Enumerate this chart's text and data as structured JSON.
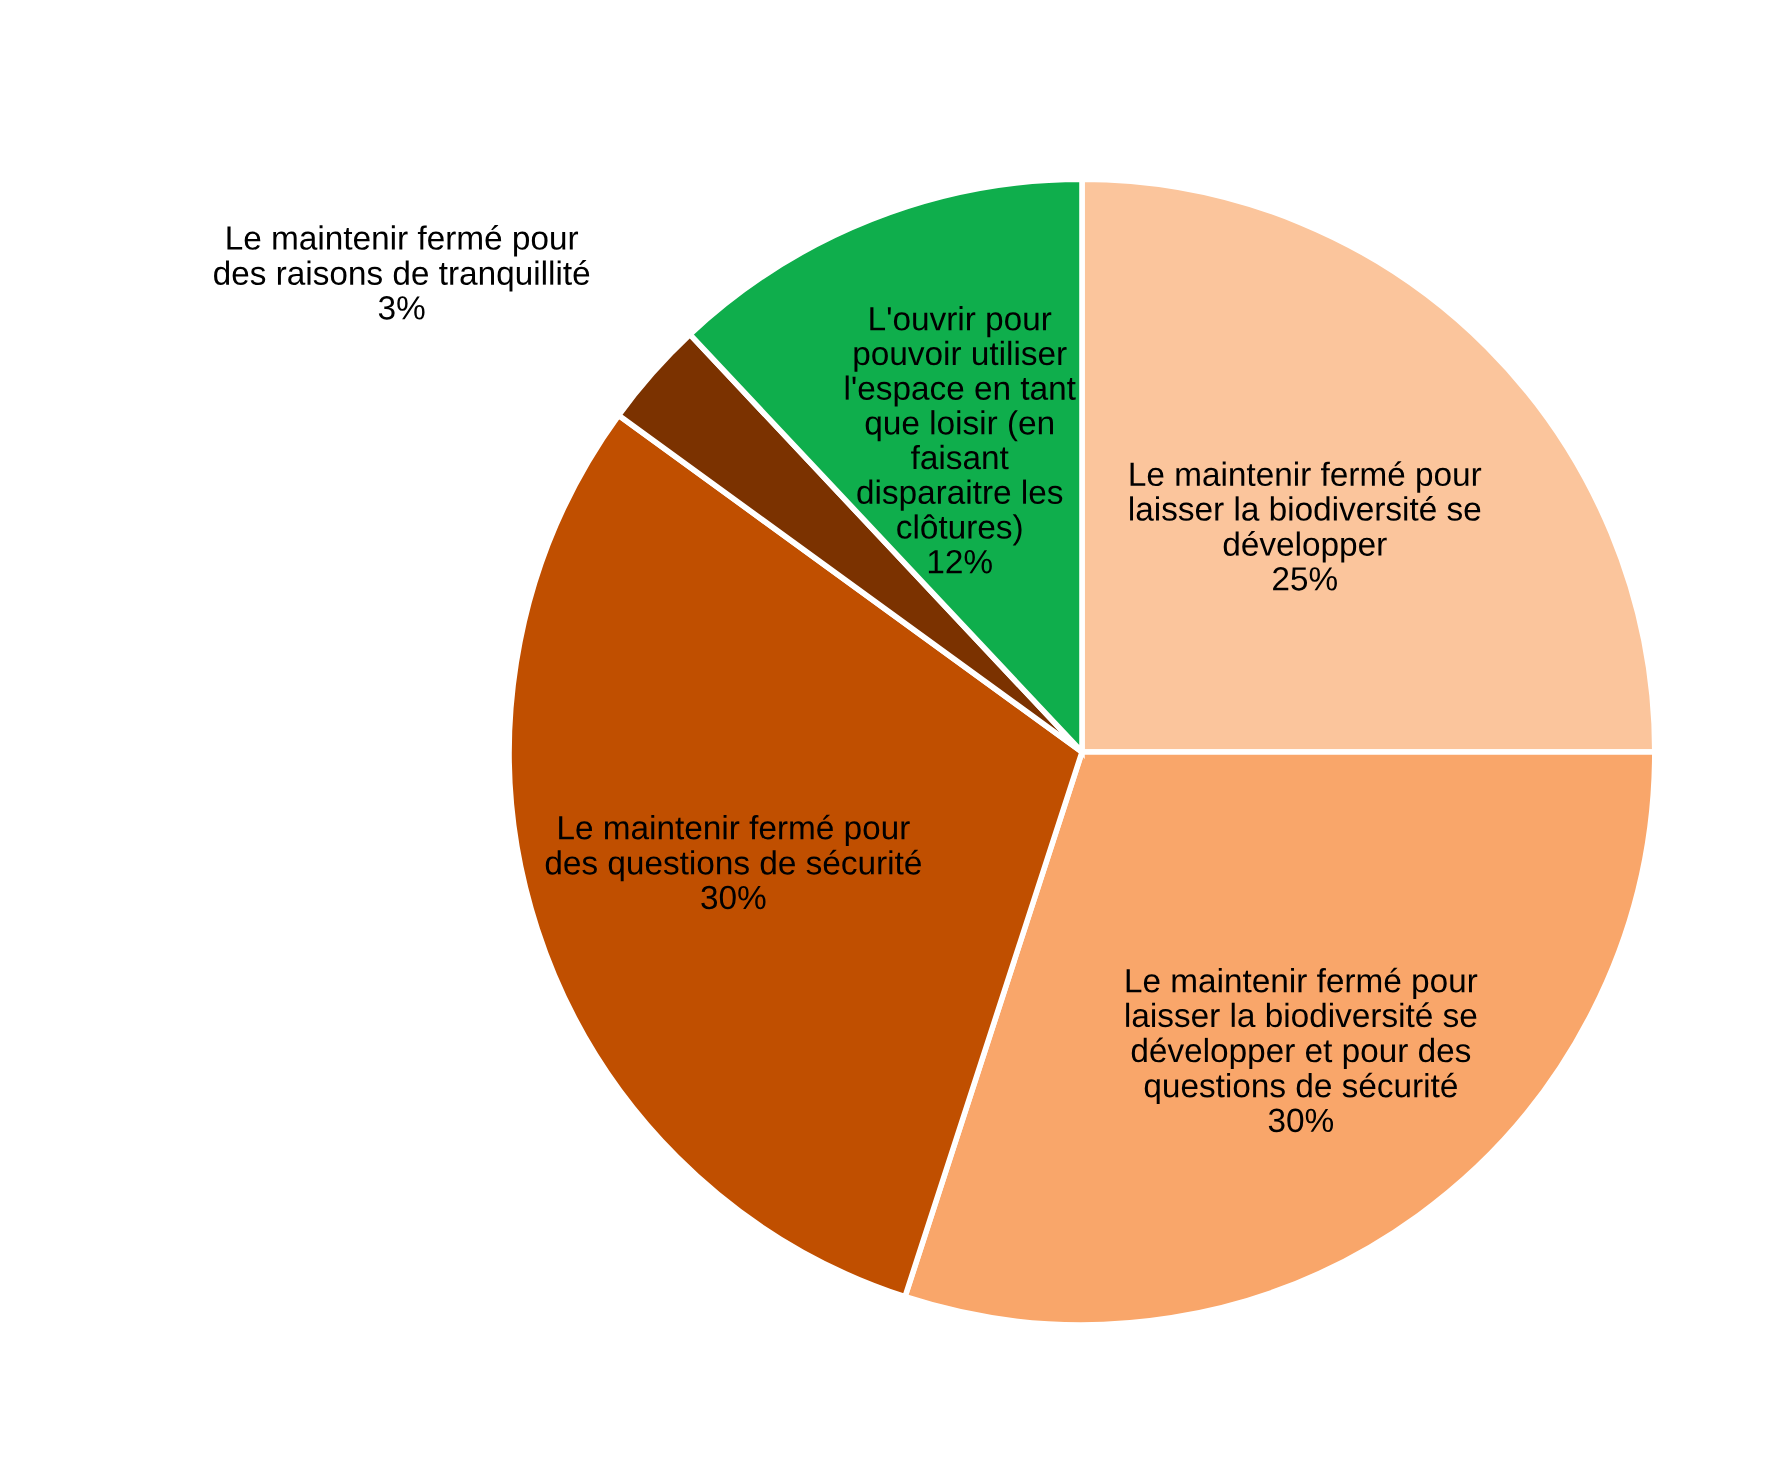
{
  "chart_data": {
    "type": "pie",
    "categories": [
      "Le maintenir fermé pour\nlaisser la biodiversité se\ndévelopper",
      "Le maintenir fermé pour\nlaisser la biodiversité se\ndévelopper et pour des\nquestions de sécurité",
      "Le maintenir fermé pour\ndes questions de sécurité",
      "Le maintenir fermé pour\ndes raisons de tranquillité",
      "L'ouvrir pour\npouvoir utiliser\nl'espace en tant\nque loisir (en\nfaisant\ndisparaitre les\nclôtures)"
    ],
    "values": [
      25,
      30,
      30,
      3,
      12
    ],
    "colors": [
      "#fbc59c",
      "#f9a66a",
      "#c04f00",
      "#7b3200",
      "#0fae4c"
    ],
    "value_labels": [
      "25%",
      "30%",
      "30%",
      "3%",
      "12%"
    ]
  }
}
